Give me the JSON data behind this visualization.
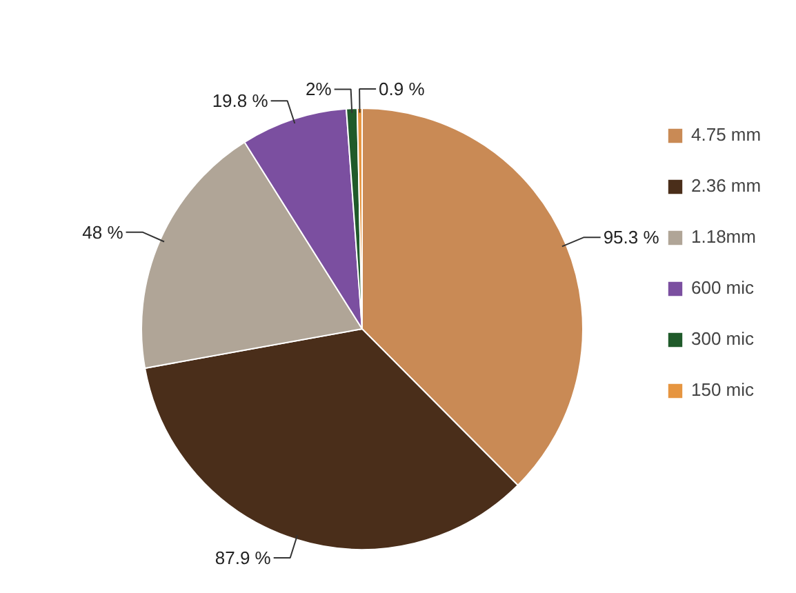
{
  "chart_data": {
    "type": "pie",
    "categories": [
      "4.75 mm",
      "2.36 mm",
      "1.18mm",
      "600 mic",
      "300 mic",
      "150 mic"
    ],
    "values": [
      95.3,
      87.9,
      48,
      19.8,
      2,
      0.9
    ],
    "value_labels": [
      "95.3 %",
      "87.9 %",
      "48 %",
      "19.8 %",
      "2%",
      "0.9 %"
    ],
    "colors": [
      "#c98a55",
      "#4a2e1a",
      "#b0a597",
      "#7b4fa0",
      "#1f5a2a",
      "#e69540"
    ],
    "legend": "right"
  }
}
